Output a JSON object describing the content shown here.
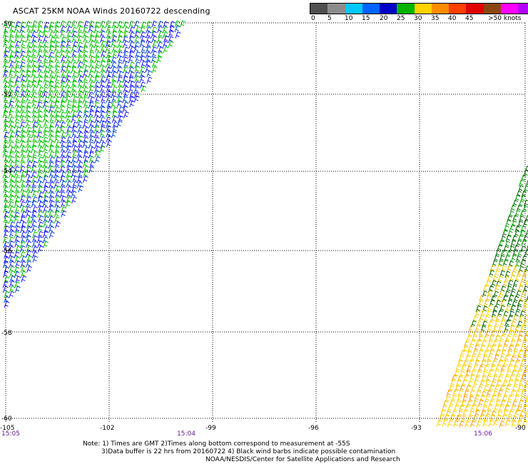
{
  "title": "ASCAT 25KM NOAA Winds 20160722 descending",
  "legend": {
    "colors": [
      "#505050",
      "#8c8c8c",
      "#00c8ff",
      "#0064ff",
      "#0000c8",
      "#00b400",
      "#ffd200",
      "#ff8c00",
      "#ff4000",
      "#e00000",
      "#8b4513",
      "#ff00ff",
      "#b400ff",
      "#6000a0"
    ],
    "labels": [
      "0",
      "5",
      "10",
      "15",
      "20",
      "25",
      "30",
      "35",
      "40",
      "45",
      ">50 knots"
    ]
  },
  "map": {
    "lat_labels": [
      "-50",
      "-52",
      "-54",
      "-56",
      "-58",
      "-60"
    ],
    "lon_labels": [
      "-105",
      "-102",
      "-99",
      "-96",
      "-93",
      "-90"
    ],
    "time_labels": [
      "15:05",
      "15:04",
      "15:06"
    ]
  },
  "notes": {
    "line1": "Note: 1) Times are GMT 2)Times along bottom correspond to measurement at -55S",
    "line2": "3)Data buffer is 22 hrs from 20160722 4) Black wind barbs indicate possible contamination",
    "line3": "NOAA/NESDIS/Center for Satellite Applications and Research"
  },
  "wind_colors": {
    "left_swath": [
      "#00c000",
      "#1a1aff",
      "#0044cc"
    ],
    "right_swath": [
      "#00a000",
      "#006400",
      "#ffd200",
      "#e8c000",
      "#ff9900"
    ]
  }
}
